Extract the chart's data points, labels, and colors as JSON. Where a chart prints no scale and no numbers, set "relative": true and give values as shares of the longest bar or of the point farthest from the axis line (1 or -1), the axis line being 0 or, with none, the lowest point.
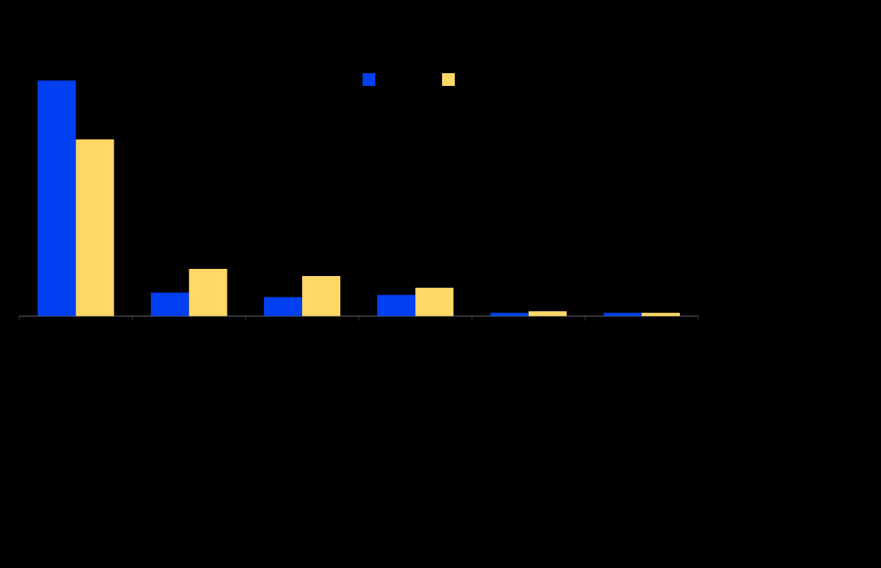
{
  "chart_data": {
    "type": "bar",
    "relative": true,
    "categories": [
      null,
      null,
      null,
      null,
      null,
      null
    ],
    "series": [
      {
        "color": "#0040f0",
        "values": [
          1,
          0.1,
          0.08,
          0.09,
          0.014,
          0.014
        ]
      },
      {
        "color": "#ffd966",
        "values": [
          0.75,
          0.2,
          0.17,
          0.12,
          0.02,
          0.014
        ]
      }
    ]
  }
}
